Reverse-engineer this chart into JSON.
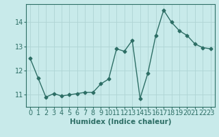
{
  "x": [
    0,
    1,
    2,
    3,
    4,
    5,
    6,
    7,
    8,
    9,
    10,
    11,
    12,
    13,
    14,
    15,
    16,
    17,
    18,
    19,
    20,
    21,
    22,
    23
  ],
  "y": [
    12.5,
    11.7,
    10.9,
    11.05,
    10.95,
    11.0,
    11.05,
    11.1,
    11.1,
    11.45,
    11.65,
    12.9,
    12.8,
    13.25,
    10.85,
    11.9,
    13.45,
    14.5,
    14.0,
    13.65,
    13.45,
    13.1,
    12.95,
    12.9
  ],
  "line_color": "#2d6e65",
  "marker": "D",
  "marker_size": 2.5,
  "bg_color": "#c8eaea",
  "grid_color": "#aed4d4",
  "xlabel": "Humidex (Indice chaleur)",
  "xlim": [
    -0.5,
    23.5
  ],
  "ylim": [
    10.5,
    14.75
  ],
  "yticks": [
    11,
    12,
    13,
    14
  ],
  "xticks": [
    0,
    1,
    2,
    3,
    4,
    5,
    6,
    7,
    8,
    9,
    10,
    11,
    12,
    13,
    14,
    15,
    16,
    17,
    18,
    19,
    20,
    21,
    22,
    23
  ],
  "xlabel_fontsize": 7.5,
  "tick_fontsize": 7
}
